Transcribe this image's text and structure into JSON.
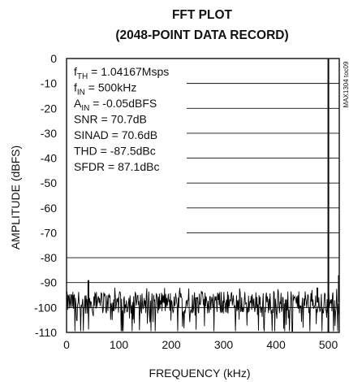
{
  "chart_data": {
    "type": "line",
    "title": "FFT PLOT",
    "subtitle": "(2048-POINT DATA RECORD)",
    "xlabel": "FREQUENCY (kHz)",
    "ylabel": "AMPLITUDE (dBFS)",
    "xlim": [
      0,
      520.8
    ],
    "ylim": [
      -110,
      0
    ],
    "x_ticks": [
      "0",
      "100",
      "200",
      "300",
      "400",
      "500"
    ],
    "y_ticks": [
      "0",
      "-10",
      "-20",
      "-30",
      "-40",
      "-50",
      "-60",
      "-70",
      "-80",
      "-90",
      "-100",
      "-110"
    ],
    "grid": true,
    "figure_id": "MAX1304 toc09",
    "annotations": [
      {
        "key": "fth",
        "sym": "f",
        "sub": "TH",
        "rest": " = 1.04167Msps"
      },
      {
        "key": "fin",
        "sym": "f",
        "sub": "IN",
        "rest": " = 500kHz"
      },
      {
        "key": "ain",
        "sym": "A",
        "sub": "IN",
        "rest": " = -0.05dBFS"
      },
      {
        "key": "snr",
        "sym": "SNR",
        "sub": "",
        "rest": " = 70.7dB"
      },
      {
        "key": "sinad",
        "sym": "SINAD",
        "sub": "",
        "rest": " = 70.6dB"
      },
      {
        "key": "thd",
        "sym": "THD",
        "sub": "",
        "rest": " = -87.5dBc"
      },
      {
        "key": "sfdr",
        "sym": "SFDR",
        "sub": "",
        "rest": " = 87.1dBc"
      }
    ],
    "fundamental": {
      "x": 500,
      "y": -0.05
    },
    "harmonic_spurs": [
      {
        "x": 41.7,
        "y": -89
      },
      {
        "x": 479,
        "y": -92
      },
      {
        "x": 520,
        "y": -87
      }
    ],
    "noise_floor": {
      "typical_db": -98,
      "min_db": -110,
      "max_db": -92
    }
  }
}
